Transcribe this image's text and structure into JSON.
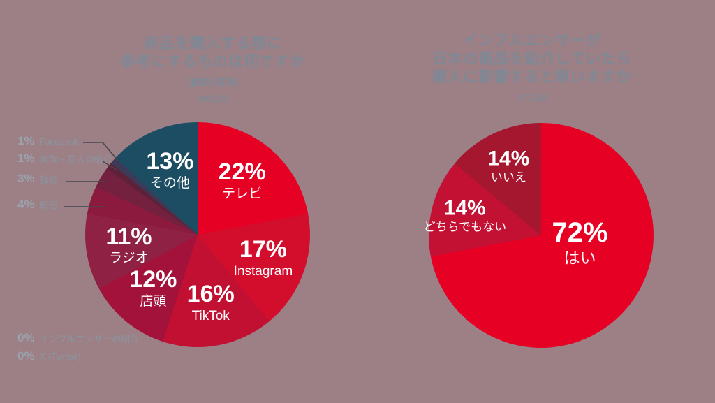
{
  "page": {
    "background_color": "#9D7F86",
    "title_color": "#7E8995",
    "callout_line_color": "#45464F"
  },
  "chart_data": [
    {
      "type": "pie",
      "title_lines": [
        "商品を購入する際に",
        "参考にするものは何ですか"
      ],
      "subtitle": "(複数回答可)",
      "sample_size": "n=118",
      "legend_position": "left-external-for-small-slices",
      "slices": [
        {
          "label": "テレビ",
          "value": 22,
          "color": "#E60023",
          "label_placement": "inside"
        },
        {
          "label": "Instagram",
          "value": 17,
          "color": "#D30D2C",
          "label_placement": "inside"
        },
        {
          "label": "TikTok",
          "value": 16,
          "color": "#C11031",
          "label_placement": "inside"
        },
        {
          "label": "店頭",
          "value": 12,
          "color": "#A3123A",
          "label_placement": "inside"
        },
        {
          "label": "ラジオ",
          "value": 11,
          "color": "#8E2144",
          "label_placement": "inside"
        },
        {
          "label": "新聞",
          "value": 4,
          "color": "#8C1A3E",
          "label_placement": "outside"
        },
        {
          "label": "雑誌",
          "value": 3,
          "color": "#74203F",
          "label_placement": "outside"
        },
        {
          "label": "家族・友人の紹介",
          "value": 1,
          "color": "#5D2139",
          "label_placement": "outside"
        },
        {
          "label": "Facebook",
          "value": 1,
          "color": "#3C3A59",
          "label_placement": "outside"
        },
        {
          "label": "その他",
          "value": 13,
          "color": "#1D4D63",
          "label_placement": "inside"
        }
      ],
      "zero_items": [
        {
          "label": "インフルエンサーの紹介",
          "value": 0
        },
        {
          "label": "X (Twitter)",
          "value": 0
        }
      ]
    },
    {
      "type": "pie",
      "title_lines": [
        "インフルエンサーが",
        "日本の商品を紹介していたら",
        "購入に影響すると思いますか"
      ],
      "sample_size": "n=118",
      "slices": [
        {
          "label": "はい",
          "value": 72,
          "color": "#E60023",
          "label_placement": "inside"
        },
        {
          "label": "どちらでもない",
          "value": 14,
          "color": "#C31134",
          "label_placement": "inside"
        },
        {
          "label": "いいえ",
          "value": 14,
          "color": "#A4172F",
          "label_placement": "inside"
        }
      ]
    }
  ]
}
